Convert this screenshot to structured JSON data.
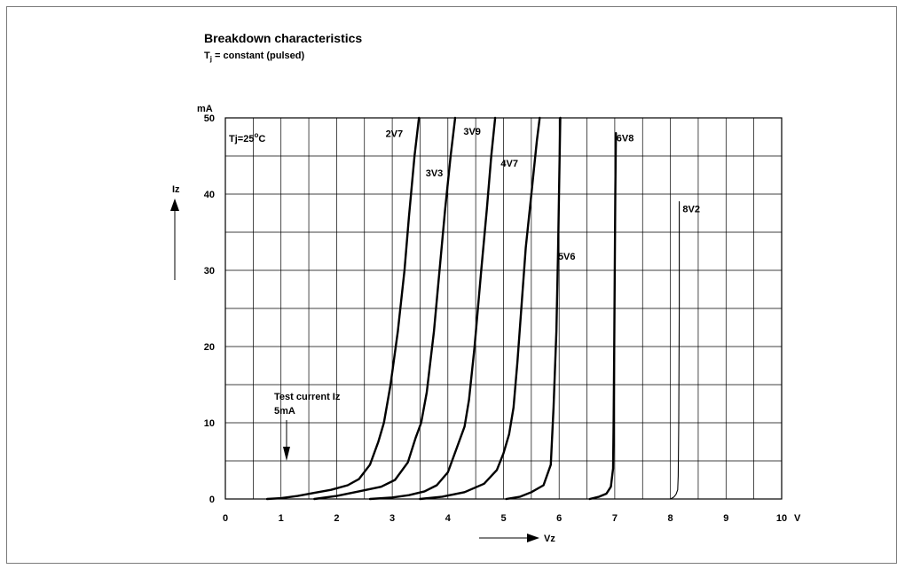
{
  "chart_data": {
    "type": "line",
    "title": "Breakdown characteristics",
    "subtitle": {
      "main": "T",
      "sub": "j",
      "rest": " = constant (pulsed)"
    },
    "xlabel": "Vz",
    "ylabel": "Iz",
    "x_unit": "V",
    "y_unit": "mA",
    "xlim": [
      0,
      10
    ],
    "ylim": [
      0,
      50
    ],
    "x_ticks": [
      "0",
      "1",
      "2",
      "3",
      "4",
      "5",
      "6",
      "7",
      "8",
      "9",
      "10"
    ],
    "y_ticks": [
      "0",
      "10",
      "20",
      "30",
      "40",
      "50"
    ],
    "grid": true,
    "annotations": {
      "temperature": {
        "pre": "Tj=25",
        "sup": "o",
        "post": "C"
      },
      "test_current_line1": "Test current Iz",
      "test_current_line2": "5mA",
      "test_current_x": 1.1,
      "test_current_y": 5
    },
    "series": [
      {
        "name": "2V7",
        "label_at": [
          2.88,
          47.5
        ],
        "points": [
          [
            0.75,
            0
          ],
          [
            1.0,
            0.1
          ],
          [
            1.3,
            0.4
          ],
          [
            1.6,
            0.8
          ],
          [
            1.9,
            1.2
          ],
          [
            2.2,
            1.8
          ],
          [
            2.4,
            2.6
          ],
          [
            2.6,
            4.5
          ],
          [
            2.75,
            7.5
          ],
          [
            2.85,
            10
          ],
          [
            2.97,
            15
          ],
          [
            3.1,
            22
          ],
          [
            3.22,
            30
          ],
          [
            3.3,
            37
          ],
          [
            3.4,
            45
          ],
          [
            3.48,
            50
          ]
        ]
      },
      {
        "name": "3V3",
        "label_at": [
          3.6,
          42.3
        ],
        "points": [
          [
            1.6,
            0
          ],
          [
            2.0,
            0.4
          ],
          [
            2.4,
            1.0
          ],
          [
            2.8,
            1.6
          ],
          [
            3.05,
            2.5
          ],
          [
            3.28,
            4.8
          ],
          [
            3.42,
            8
          ],
          [
            3.52,
            10
          ],
          [
            3.62,
            14
          ],
          [
            3.75,
            22
          ],
          [
            3.85,
            30
          ],
          [
            3.95,
            38
          ],
          [
            4.05,
            45
          ],
          [
            4.13,
            50
          ]
        ]
      },
      {
        "name": "3V9",
        "label_at": [
          4.28,
          47.8
        ],
        "points": [
          [
            2.6,
            0
          ],
          [
            3.0,
            0.2
          ],
          [
            3.3,
            0.5
          ],
          [
            3.58,
            1.0
          ],
          [
            3.8,
            1.8
          ],
          [
            4.0,
            3.5
          ],
          [
            4.15,
            6.5
          ],
          [
            4.3,
            9.5
          ],
          [
            4.38,
            13
          ],
          [
            4.48,
            20
          ],
          [
            4.6,
            30
          ],
          [
            4.7,
            38
          ],
          [
            4.78,
            45
          ],
          [
            4.85,
            50
          ]
        ]
      },
      {
        "name": "4V7",
        "label_at": [
          4.95,
          43.6
        ],
        "points": [
          [
            3.5,
            0
          ],
          [
            3.9,
            0.3
          ],
          [
            4.3,
            0.9
          ],
          [
            4.65,
            2.0
          ],
          [
            4.88,
            3.8
          ],
          [
            5.0,
            6
          ],
          [
            5.1,
            8.5
          ],
          [
            5.18,
            12
          ],
          [
            5.25,
            18
          ],
          [
            5.33,
            26
          ],
          [
            5.4,
            33
          ],
          [
            5.5,
            40
          ],
          [
            5.6,
            47
          ],
          [
            5.65,
            50
          ]
        ]
      },
      {
        "name": "5V6",
        "label_at": [
          5.98,
          31.4
        ],
        "points": [
          [
            5.05,
            0
          ],
          [
            5.3,
            0.3
          ],
          [
            5.5,
            0.9
          ],
          [
            5.72,
            1.8
          ],
          [
            5.85,
            4.5
          ],
          [
            5.9,
            12
          ],
          [
            5.95,
            22
          ],
          [
            5.98,
            32
          ],
          [
            6.0,
            41
          ],
          [
            6.02,
            50
          ]
        ]
      },
      {
        "name": "6V8",
        "label_at": [
          7.03,
          46.9
        ],
        "points": [
          [
            6.55,
            0
          ],
          [
            6.72,
            0.3
          ],
          [
            6.85,
            0.7
          ],
          [
            6.93,
            1.6
          ],
          [
            6.97,
            4
          ],
          [
            6.98,
            10
          ],
          [
            6.99,
            20
          ],
          [
            7.0,
            30
          ],
          [
            7.01,
            40
          ],
          [
            7.02,
            48
          ]
        ]
      },
      {
        "name": "8V2",
        "label_at": [
          8.22,
          37.6
        ],
        "points": [
          [
            8.0,
            0
          ],
          [
            8.06,
            0.25
          ],
          [
            8.1,
            0.6
          ],
          [
            8.13,
            1.2
          ],
          [
            8.14,
            3
          ],
          [
            8.15,
            10
          ],
          [
            8.16,
            25
          ],
          [
            8.16,
            39
          ]
        ]
      }
    ]
  }
}
